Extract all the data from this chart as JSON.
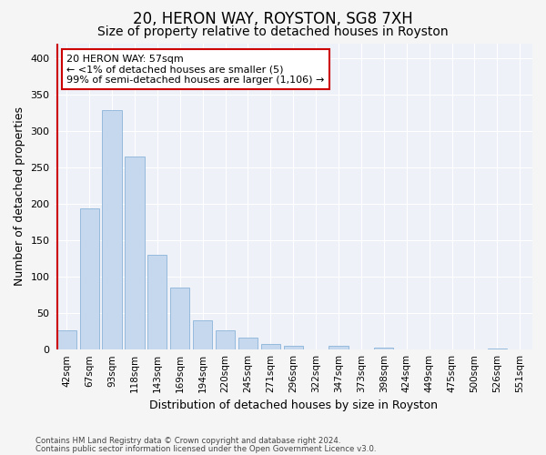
{
  "title": "20, HERON WAY, ROYSTON, SG8 7XH",
  "subtitle": "Size of property relative to detached houses in Royston",
  "xlabel": "Distribution of detached houses by size in Royston",
  "ylabel": "Number of detached properties",
  "bar_color": "#c5d8ee",
  "bar_edge_color": "#8ab4d8",
  "background_color": "#eef2f8",
  "grid_color": "#ffffff",
  "categories": [
    "42sqm",
    "67sqm",
    "93sqm",
    "118sqm",
    "143sqm",
    "169sqm",
    "194sqm",
    "220sqm",
    "245sqm",
    "271sqm",
    "296sqm",
    "322sqm",
    "347sqm",
    "373sqm",
    "398sqm",
    "424sqm",
    "449sqm",
    "475sqm",
    "500sqm",
    "526sqm",
    "551sqm"
  ],
  "values": [
    26,
    193,
    328,
    265,
    130,
    85,
    40,
    27,
    16,
    8,
    5,
    0,
    5,
    0,
    3,
    0,
    0,
    0,
    0,
    2,
    0
  ],
  "ylim": [
    0,
    420
  ],
  "yticks": [
    0,
    50,
    100,
    150,
    200,
    250,
    300,
    350,
    400
  ],
  "marker_color": "#cc0000",
  "annotation_text": "20 HERON WAY: 57sqm\n← <1% of detached houses are smaller (5)\n99% of semi-detached houses are larger (1,106) →",
  "annotation_box_color": "#ffffff",
  "annotation_box_edge_color": "#cc0000",
  "footer_line1": "Contains HM Land Registry data © Crown copyright and database right 2024.",
  "footer_line2": "Contains public sector information licensed under the Open Government Licence v3.0.",
  "title_fontsize": 12,
  "subtitle_fontsize": 10,
  "tick_fontsize": 7.5,
  "ylabel_fontsize": 9,
  "xlabel_fontsize": 9,
  "annotation_fontsize": 8
}
